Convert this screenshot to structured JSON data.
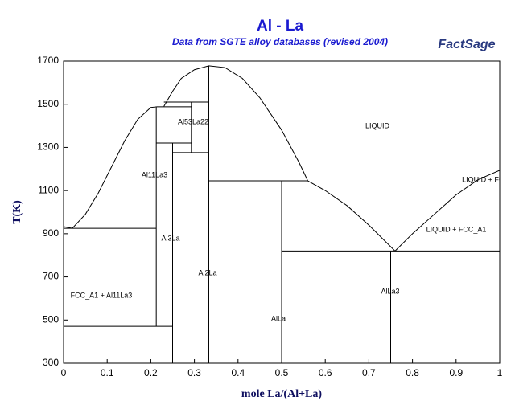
{
  "chart_data": {
    "type": "phase-diagram",
    "title": "Al - La",
    "subtitle": "Data from SGTE alloy databases (revised 2004)",
    "logo": "FactSage",
    "x_label": "mole La/(Al+La)",
    "y_label": "T(K)",
    "xlim": [
      0,
      1
    ],
    "ylim": [
      300,
      1700
    ],
    "xticks": [
      0,
      0.1,
      0.2,
      0.3,
      0.4,
      0.5,
      0.6,
      0.7,
      0.8,
      0.9,
      1
    ],
    "yticks": [
      300,
      500,
      700,
      900,
      1100,
      1300,
      1500,
      1700
    ],
    "color": "#000000",
    "region_labels": [
      "Al53La22",
      "LIQUID",
      "Al11La3",
      "LIQUID + FCC_",
      "LIQUID + FCC_A1",
      "Al3La",
      "Al2La",
      "FCC_A1 + Al11La3",
      "AlLa3",
      "AlLa"
    ],
    "series": [
      {
        "x": [
          0,
          0.02,
          0.05,
          0.08,
          0.11,
          0.14,
          0.17,
          0.2,
          0.2125
        ],
        "values": [
          933,
          925,
          990,
          1090,
          1210,
          1330,
          1430,
          1485,
          1488
        ]
      },
      {
        "x": [
          0.23,
          0.25,
          0.27,
          0.3,
          0.333,
          0.37,
          0.41,
          0.45,
          0.5,
          0.54,
          0.56
        ],
        "values": [
          1490,
          1560,
          1620,
          1660,
          1678,
          1670,
          1620,
          1530,
          1380,
          1230,
          1145
        ]
      },
      {
        "x": [
          0.56,
          0.6,
          0.65,
          0.7,
          0.73,
          0.76
        ],
        "values": [
          1145,
          1100,
          1030,
          940,
          880,
          820
        ]
      },
      {
        "x": [
          0.76,
          0.8,
          0.85,
          0.9,
          0.95,
          1
        ],
        "values": [
          820,
          900,
          990,
          1080,
          1150,
          1194
        ]
      },
      {
        "x": [
          0,
          0.2125
        ],
        "values": [
          925,
          925
        ]
      },
      {
        "x": [
          0,
          0.25
        ],
        "values": [
          471,
          471
        ]
      },
      {
        "x": [
          0.2125,
          0.2125
        ],
        "values": [
          471,
          1488
        ]
      },
      {
        "x": [
          0.2125,
          0.293
        ],
        "values": [
          1488,
          1488
        ]
      },
      {
        "x": [
          0.23,
          0.333
        ],
        "values": [
          1510,
          1510
        ]
      },
      {
        "x": [
          0.2125,
          0.293
        ],
        "values": [
          1320,
          1320
        ]
      },
      {
        "x": [
          0.25,
          0.25
        ],
        "values": [
          300,
          1320
        ]
      },
      {
        "x": [
          0.293,
          0.293
        ],
        "values": [
          1276,
          1510
        ]
      },
      {
        "x": [
          0.25,
          0.333
        ],
        "values": [
          1276,
          1276
        ]
      },
      {
        "x": [
          0.333,
          0.333
        ],
        "values": [
          300,
          1678
        ]
      },
      {
        "x": [
          0.333,
          0.56
        ],
        "values": [
          1145,
          1145
        ]
      },
      {
        "x": [
          0.5,
          0.5
        ],
        "values": [
          300,
          1145
        ]
      },
      {
        "x": [
          0.5,
          1
        ],
        "values": [
          820,
          820
        ]
      },
      {
        "x": [
          0.75,
          0.75
        ],
        "values": [
          300,
          820
        ]
      }
    ]
  }
}
